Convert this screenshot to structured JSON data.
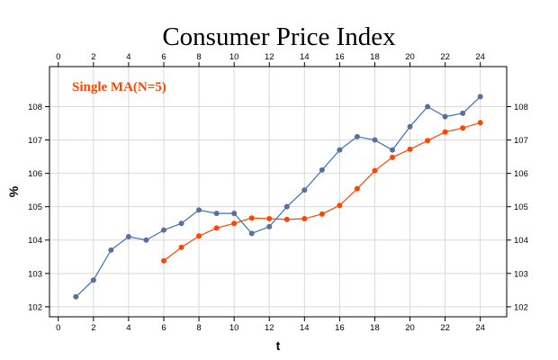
{
  "chart_data": {
    "type": "line",
    "title": "Consumer Price Index",
    "xlabel": "t",
    "ylabel": "%",
    "xlim": [
      -0.5,
      25.5
    ],
    "ylim": [
      101.7,
      109.2
    ],
    "x_ticks": [
      0,
      2,
      4,
      6,
      8,
      10,
      12,
      14,
      16,
      18,
      20,
      22,
      24
    ],
    "y_ticks": [
      102,
      103,
      104,
      105,
      106,
      107,
      108
    ],
    "grid": true,
    "annotation": "Single MA(N=5)",
    "series": [
      {
        "color": "#3a6fc4",
        "marker_color": "#5a6f9c",
        "x": [
          1,
          2,
          3,
          4,
          5,
          6,
          7,
          8,
          9,
          10,
          11,
          12,
          13,
          14,
          15,
          16,
          17,
          18,
          19,
          20,
          21,
          22,
          23,
          24
        ],
        "values": [
          102.3,
          102.8,
          103.7,
          104.1,
          104.0,
          104.3,
          104.5,
          104.9,
          104.8,
          104.8,
          104.2,
          104.4,
          105.0,
          105.5,
          106.1,
          106.7,
          107.1,
          107.0,
          106.7,
          107.4,
          108.0,
          107.7,
          107.8,
          108.3
        ]
      },
      {
        "color": "#ff4500",
        "marker_color": "#ff4500",
        "x": [
          6,
          7,
          8,
          9,
          10,
          11,
          12,
          13,
          14,
          15,
          16,
          17,
          18,
          19,
          20,
          21,
          22,
          23,
          24
        ],
        "values": [
          103.38,
          103.78,
          104.12,
          104.36,
          104.5,
          104.66,
          104.64,
          104.62,
          104.64,
          104.78,
          105.04,
          105.54,
          106.08,
          106.48,
          106.72,
          106.98,
          107.24,
          107.36,
          107.52
        ]
      }
    ]
  }
}
